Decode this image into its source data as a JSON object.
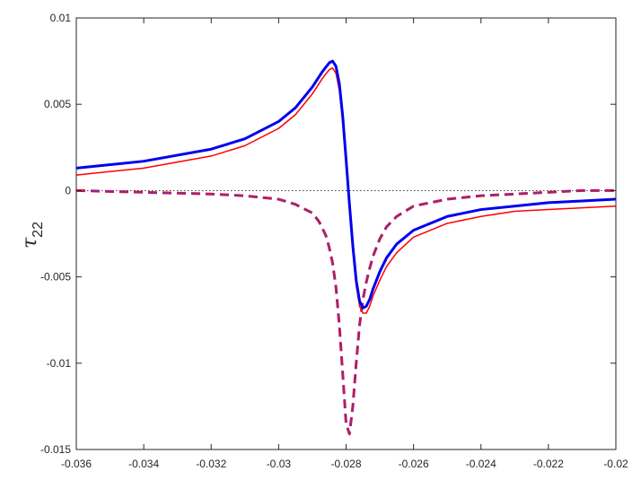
{
  "chart_data": {
    "type": "line",
    "title": "",
    "xlabel": "",
    "ylabel_symbol": "τ",
    "ylabel_subscript": "22",
    "xlim": [
      -0.036,
      -0.02
    ],
    "ylim": [
      -0.015,
      0.01
    ],
    "xticks": [
      -0.036,
      -0.034,
      -0.032,
      -0.03,
      -0.028,
      -0.026,
      -0.024,
      -0.022,
      -0.02
    ],
    "xtick_labels": [
      "-0.036",
      "-0.034",
      "-0.032",
      "-0.03",
      "-0.028",
      "-0.026",
      "-0.024",
      "-0.022",
      "-0.02"
    ],
    "yticks": [
      0.01,
      0.005,
      0,
      -0.005,
      -0.01,
      -0.015
    ],
    "ytick_labels": [
      "0.01",
      "0.005",
      "0",
      "-0.005",
      "-0.01",
      "-0.015"
    ],
    "grid": false,
    "legend": "none",
    "series": [
      {
        "style": "solid",
        "color": "#0000ee",
        "width": 3,
        "x": [
          -0.036,
          -0.034,
          -0.032,
          -0.031,
          -0.03,
          -0.0295,
          -0.029,
          -0.0287,
          -0.0285,
          -0.0284,
          -0.0283,
          -0.0282,
          -0.0281,
          -0.028,
          -0.0279,
          -0.0278,
          -0.0277,
          -0.0276,
          -0.0275,
          -0.0274,
          -0.0273,
          -0.0272,
          -0.027,
          -0.0268,
          -0.0265,
          -0.026,
          -0.025,
          -0.024,
          -0.023,
          -0.022,
          -0.021,
          -0.02
        ],
        "y": [
          0.0013,
          0.0017,
          0.0024,
          0.003,
          0.004,
          0.0048,
          0.006,
          0.0069,
          0.0074,
          0.0075,
          0.0072,
          0.0062,
          0.0043,
          0.0018,
          -0.0008,
          -0.0032,
          -0.0052,
          -0.0064,
          -0.0068,
          -0.0067,
          -0.0063,
          -0.0057,
          -0.0047,
          -0.0039,
          -0.0031,
          -0.0023,
          -0.0015,
          -0.0011,
          -0.0009,
          -0.0007,
          -0.0006,
          -0.0005
        ]
      },
      {
        "style": "solid",
        "color": "#ff0000",
        "width": 1.5,
        "x": [
          -0.036,
          -0.034,
          -0.032,
          -0.031,
          -0.03,
          -0.0295,
          -0.029,
          -0.0287,
          -0.0285,
          -0.0284,
          -0.0283,
          -0.0282,
          -0.0281,
          -0.028,
          -0.0279,
          -0.0278,
          -0.0277,
          -0.0276,
          -0.0275,
          -0.0274,
          -0.0273,
          -0.0272,
          -0.027,
          -0.0268,
          -0.0265,
          -0.026,
          -0.025,
          -0.024,
          -0.023,
          -0.022,
          -0.021,
          -0.02
        ],
        "y": [
          0.0009,
          0.0013,
          0.002,
          0.0026,
          0.0036,
          0.0044,
          0.0056,
          0.0065,
          0.007,
          0.0071,
          0.0068,
          0.0058,
          0.004,
          0.0015,
          -0.0011,
          -0.0035,
          -0.0055,
          -0.0067,
          -0.0071,
          -0.0071,
          -0.0067,
          -0.0061,
          -0.0052,
          -0.0044,
          -0.0036,
          -0.0027,
          -0.0019,
          -0.0015,
          -0.0012,
          -0.0011,
          -0.001,
          -0.0009
        ]
      },
      {
        "style": "dashed",
        "color": "#ff0000",
        "width": 3,
        "x": [
          -0.036,
          -0.034,
          -0.032,
          -0.031,
          -0.03,
          -0.0295,
          -0.029,
          -0.0288,
          -0.0286,
          -0.0285,
          -0.0284,
          -0.0283,
          -0.0282,
          -0.0281,
          -0.028,
          -0.0279,
          -0.0278,
          -0.0277,
          -0.0276,
          -0.0275,
          -0.0274,
          -0.0273,
          -0.0272,
          -0.027,
          -0.0268,
          -0.0265,
          -0.026,
          -0.025,
          -0.024,
          -0.023,
          -0.022,
          -0.021,
          -0.02
        ],
        "y": [
          0.0,
          -0.0001,
          -0.0002,
          -0.0003,
          -0.0005,
          -0.0008,
          -0.0013,
          -0.0018,
          -0.0026,
          -0.0033,
          -0.0042,
          -0.0056,
          -0.0078,
          -0.0106,
          -0.0135,
          -0.0141,
          -0.0125,
          -0.01,
          -0.0078,
          -0.0063,
          -0.0053,
          -0.0045,
          -0.0038,
          -0.0028,
          -0.0021,
          -0.0015,
          -0.0009,
          -0.0005,
          -0.0003,
          -0.0002,
          -0.0001,
          0.0,
          0.0
        ]
      },
      {
        "style": "dashed",
        "color": "#7a2fa8",
        "width": 1.8,
        "x": [
          -0.036,
          -0.034,
          -0.032,
          -0.031,
          -0.03,
          -0.0295,
          -0.029,
          -0.0288,
          -0.0286,
          -0.0285,
          -0.0284,
          -0.0283,
          -0.0282,
          -0.0281,
          -0.028,
          -0.0279,
          -0.0278,
          -0.0277,
          -0.0276,
          -0.0275,
          -0.0274,
          -0.0273,
          -0.0272,
          -0.027,
          -0.0268,
          -0.0265,
          -0.026,
          -0.025,
          -0.024,
          -0.023,
          -0.022,
          -0.021,
          -0.02
        ],
        "y": [
          0.0,
          -0.0001,
          -0.0002,
          -0.0003,
          -0.0005,
          -0.0008,
          -0.0013,
          -0.0018,
          -0.0026,
          -0.0033,
          -0.0042,
          -0.0056,
          -0.0078,
          -0.0106,
          -0.0135,
          -0.0141,
          -0.0125,
          -0.01,
          -0.0078,
          -0.0063,
          -0.0053,
          -0.0045,
          -0.0038,
          -0.0028,
          -0.0021,
          -0.0015,
          -0.0009,
          -0.0005,
          -0.0003,
          -0.0002,
          -0.0001,
          0.0,
          0.0
        ]
      },
      {
        "style": "dotted",
        "color": "#000000",
        "width": 0.8,
        "x": [
          -0.036,
          -0.02
        ],
        "y": [
          0,
          0
        ]
      }
    ]
  }
}
